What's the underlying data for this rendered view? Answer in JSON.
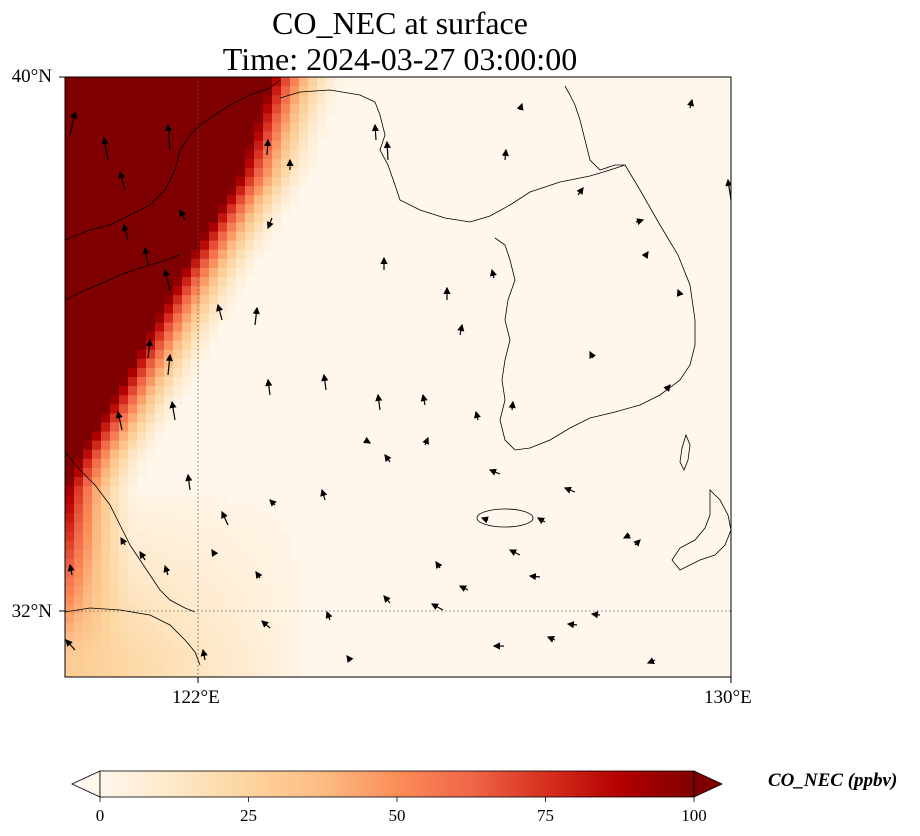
{
  "title": {
    "line1": "CO_NEC at surface",
    "line2": "Time: 2024-03-27 03:00:00"
  },
  "axes": {
    "lat_labels": [
      "40°N",
      "32°N"
    ],
    "lon_labels": [
      "122°E",
      "130°E"
    ],
    "lat_range": [
      31,
      40
    ],
    "lon_range": [
      120,
      130
    ],
    "gridlines": {
      "lat": 32,
      "lon": 122,
      "style": "dotted"
    }
  },
  "colorbar": {
    "label": "CO_NEC (ppbv)",
    "ticks": [
      "0",
      "25",
      "50",
      "75",
      "100"
    ],
    "range": [
      0,
      100
    ],
    "colormap": "OrRd",
    "extend": "both",
    "colors": [
      "#fff7ec",
      "#fee8c8",
      "#fdd49e",
      "#fdbb84",
      "#fc8d59",
      "#ef6548",
      "#d7301f",
      "#b30000",
      "#7f0000"
    ]
  },
  "chart_data": {
    "type": "heatmap",
    "variable": "CO_NEC",
    "level": "surface",
    "time": "2024-03-27 03:00:00",
    "units": "ppbv",
    "plume": {
      "description_side": "west",
      "saturated_value": 100,
      "front_lon_at_lat": [
        [
          40.0,
          123.1
        ],
        [
          38.5,
          122.6
        ],
        [
          37.0,
          121.7
        ],
        [
          35.5,
          120.9
        ],
        [
          34.8,
          120.5
        ],
        [
          34.3,
          120.2
        ],
        [
          33.8,
          120.0
        ]
      ],
      "transition_width_deg": 1.1,
      "southwest_corner_value": 30
    },
    "background_value": 2,
    "wind_vectors": "quiver field overlaid"
  }
}
